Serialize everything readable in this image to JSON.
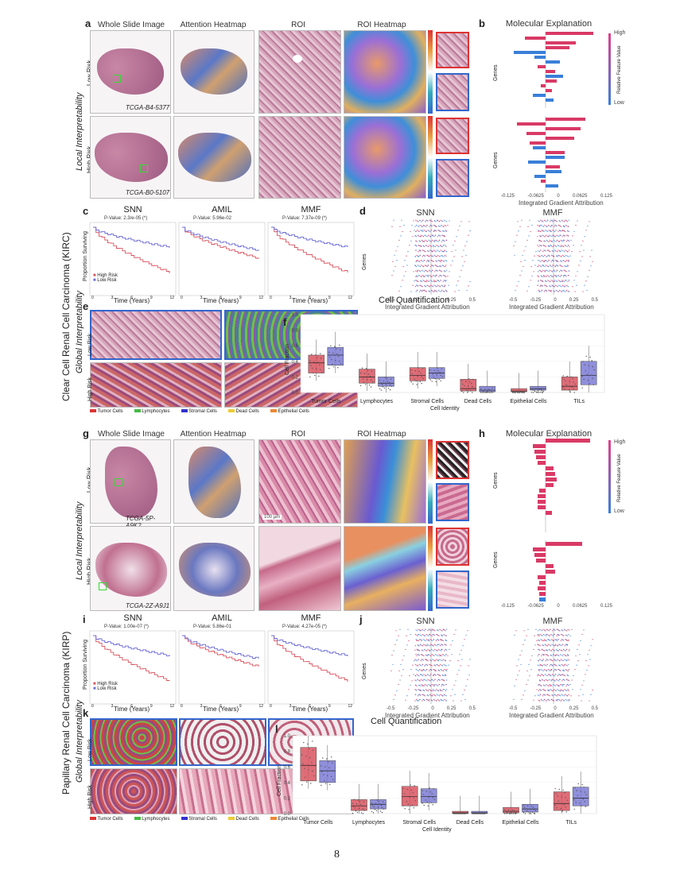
{
  "column_titles": [
    "Whole Slide Image",
    "Attention Heatmap",
    "ROI",
    "ROI Heatmap"
  ],
  "molecular_title": "Molecular Explanation",
  "cell_quant_title": "Cell Quantification",
  "side_labels": {
    "kirc": "Clear Cell Renal Cell Carcinoma (KIRC)",
    "kirp": "Papillary Renal Cell Carcinoma (KIRP)",
    "local": "Local Interpretability",
    "global": "Global Interpretability",
    "low_risk": "Low Risk",
    "high_risk": "High Risk"
  },
  "panel_letters": {
    "a": "a",
    "b": "b",
    "c": "c",
    "d": "d",
    "e": "e",
    "f": "f",
    "g": "g",
    "h": "h",
    "i": "i",
    "j": "j",
    "k": "k",
    "l": "l"
  },
  "slide_ids": {
    "kirc_low": "TCGA-B4-5377",
    "kirc_high": "TCGA-B0-5107",
    "kirp_low": "TCGA-5P-A9K2",
    "kirp_high": "TCGA-2Z-A9J1"
  },
  "scale_bar": "100 µm",
  "legend_feature": {
    "high": "High",
    "low": "Low",
    "label": "Relative Feature Value"
  },
  "genes_label": "Genes",
  "ig_label": "Integrated Gradient Attribution",
  "ig_ticks_bar": [
    "-0.125",
    "-0.0625",
    "0",
    "0.0625",
    "0.125"
  ],
  "ig_ticks_swarm": [
    "-0.5",
    "-0.25",
    "0",
    "0.25",
    "0.5"
  ],
  "km_models": [
    "SNN",
    "AMIL",
    "MMF"
  ],
  "km_pvalues_kirc": [
    "P-Value: 2.3/e-05 (*)",
    "P-Value: 5.96e-02",
    "P-Value: 7.37e-09 (*)"
  ],
  "km_pvalues_kirp": [
    "P-Value: 1.00e-07 (*)",
    "P-Value: 5.86e-01",
    "P-Value: 4.27e-05 (*)"
  ],
  "km_ylabel": "Proportion Surviving",
  "km_xlabel": "Time (Years)",
  "km_ticks_y": [
    "0.0",
    "0.2",
    "0.4",
    "0.6",
    "0.8",
    "1.0"
  ],
  "km_ticks_x": [
    "0",
    "3",
    "6",
    "9",
    "12"
  ],
  "km_legend": {
    "high": "High Risk",
    "low": "Low Risk"
  },
  "cell_legend": [
    "Tumor Cells",
    "Lymphocytes",
    "Stromal Cells",
    "Dead Cells",
    "Epithelial Cells"
  ],
  "chart_data": [
    {
      "type": "box",
      "panel": "f",
      "title": "Cell Quantification",
      "xlabel": "Cell Identity",
      "ylabel": "Cell Fraction",
      "ylim": [
        0,
        1.0
      ],
      "yticks": [
        "0.0",
        "0.2",
        "0.4",
        "0.6",
        "0.8",
        "1.0"
      ],
      "categories": [
        "Tumor Cells",
        "Lymphocytes",
        "Stromal Cells",
        "Dead Cells",
        "Epithelial Cells",
        "TILs"
      ],
      "series": [
        {
          "name": "High Risk",
          "color": "#d9535f",
          "median": [
            0.38,
            0.2,
            0.22,
            0.05,
            0.02,
            0.08
          ],
          "q1": [
            0.25,
            0.12,
            0.15,
            0.02,
            0.01,
            0.03
          ],
          "q3": [
            0.48,
            0.3,
            0.32,
            0.17,
            0.05,
            0.2
          ]
        },
        {
          "name": "Low Risk",
          "color": "#7b7bd6",
          "median": [
            0.48,
            0.12,
            0.25,
            0.03,
            0.05,
            0.22
          ],
          "q1": [
            0.35,
            0.08,
            0.18,
            0.01,
            0.03,
            0.1
          ],
          "q3": [
            0.58,
            0.2,
            0.32,
            0.08,
            0.08,
            0.4
          ]
        }
      ]
    },
    {
      "type": "box",
      "panel": "l",
      "title": "Cell Quantification",
      "xlabel": "Cell Identity",
      "ylabel": "Cell Fraction",
      "ylim": [
        0,
        1.0
      ],
      "yticks": [
        "0.0",
        "0.2",
        "0.4",
        "0.6",
        "0.8",
        "1.0"
      ],
      "categories": [
        "Tumor Cells",
        "Lymphocytes",
        "Stromal Cells",
        "Dead Cells",
        "Epithelial Cells",
        "TILs"
      ],
      "series": [
        {
          "name": "High Risk",
          "color": "#d9535f",
          "median": [
            0.62,
            0.1,
            0.22,
            0.01,
            0.03,
            0.13
          ],
          "q1": [
            0.42,
            0.04,
            0.1,
            0.0,
            0.01,
            0.04
          ],
          "q3": [
            0.85,
            0.18,
            0.35,
            0.03,
            0.08,
            0.28
          ]
        },
        {
          "name": "Low Risk",
          "color": "#7b7bd6",
          "median": [
            0.55,
            0.12,
            0.22,
            0.01,
            0.06,
            0.2
          ],
          "q1": [
            0.4,
            0.06,
            0.14,
            0.0,
            0.02,
            0.1
          ],
          "q3": [
            0.68,
            0.18,
            0.32,
            0.03,
            0.12,
            0.34
          ]
        }
      ]
    }
  ],
  "page_number": "8"
}
